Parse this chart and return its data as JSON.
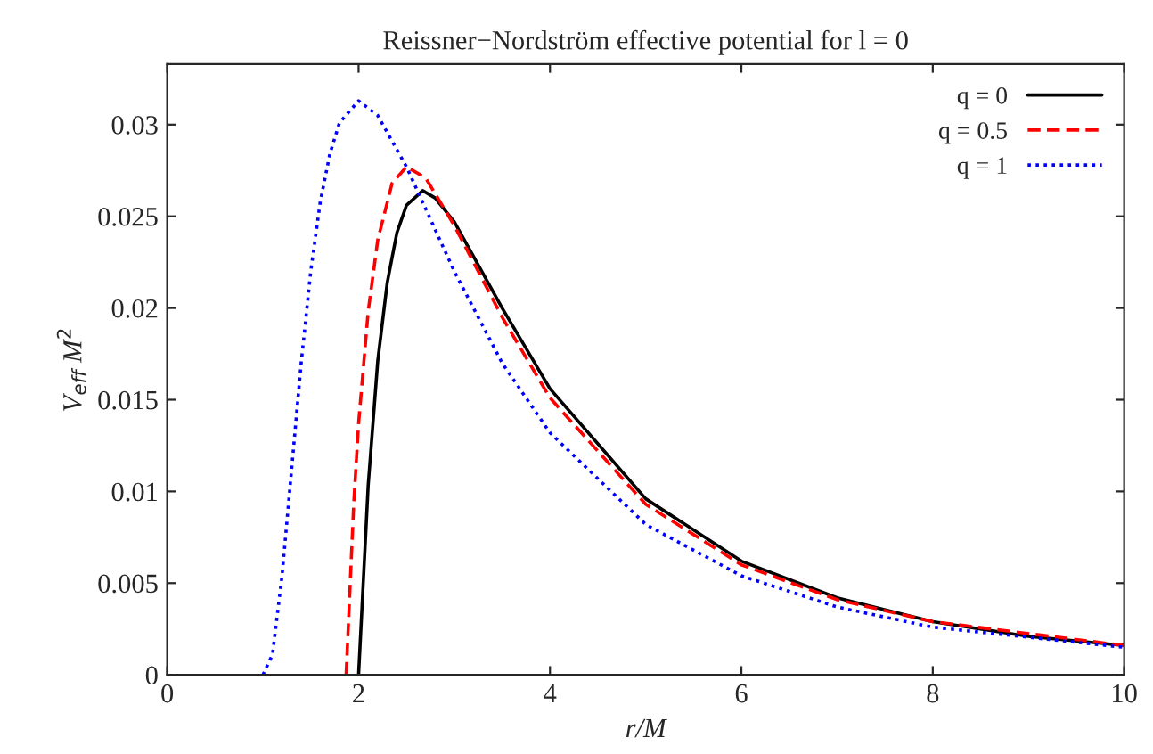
{
  "chart_data": {
    "type": "line",
    "title": "Reissner−Nordström effective potential for l = 0",
    "xlabel": "r/M",
    "ylabel": "V$_{eff}$ M$^{2}$",
    "xlim": [
      0,
      10
    ],
    "xticks": [
      0,
      2,
      4,
      6,
      8,
      10
    ],
    "ylim": [
      0,
      0.0333
    ],
    "yticks": [
      0,
      0.005,
      0.01,
      0.015,
      0.02,
      0.025,
      0.03
    ],
    "grid": false,
    "legend": "top right",
    "series": [
      {
        "name": "q = 0",
        "color": "#000000",
        "line_style": "solid",
        "x": [
          2,
          2.1,
          2.2,
          2.3,
          2.4,
          2.5,
          2.67,
          2.8,
          3,
          3.5,
          4,
          5,
          6,
          7,
          8,
          9,
          10
        ],
        "values": [
          0,
          0.0103,
          0.0171,
          0.0214,
          0.0241,
          0.0256,
          0.0264,
          0.026,
          0.0247,
          0.02,
          0.0156,
          0.0096,
          0.0062,
          0.0042,
          0.0029,
          0.0021,
          0.0016
        ]
      },
      {
        "name": "q = 0.5",
        "color": "#ff0000",
        "line_style": "dashed",
        "x": [
          1.87,
          1.95,
          2,
          2.1,
          2.2,
          2.35,
          2.5,
          2.7,
          3,
          3.5,
          4,
          5,
          6,
          7,
          8,
          10
        ],
        "values": [
          0,
          0.0094,
          0.0137,
          0.0198,
          0.0237,
          0.0268,
          0.0277,
          0.0271,
          0.0245,
          0.0195,
          0.0151,
          0.0093,
          0.006,
          0.0041,
          0.0029,
          0.0016
        ]
      },
      {
        "name": "q = 1",
        "color": "#0000ff",
        "line_style": "dotted",
        "x": [
          1,
          1.1,
          1.2,
          1.3,
          1.4,
          1.5,
          1.6,
          1.7,
          1.8,
          2,
          2.2,
          2.5,
          3,
          3.5,
          4,
          5,
          6,
          7,
          8,
          10
        ],
        "values": [
          0,
          0.0011,
          0.0054,
          0.0112,
          0.017,
          0.022,
          0.0258,
          0.0284,
          0.0301,
          0.0313,
          0.0305,
          0.0277,
          0.022,
          0.017,
          0.0132,
          0.0082,
          0.0054,
          0.0037,
          0.0026,
          0.0015
        ]
      }
    ]
  }
}
